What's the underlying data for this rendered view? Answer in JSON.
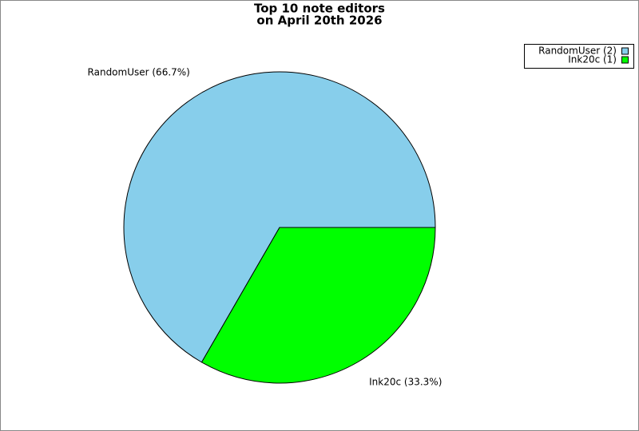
{
  "chart_data": {
    "type": "pie",
    "title": [
      "Top 10 note editors",
      "on April 20th 2026"
    ],
    "categories": [
      "RandomUser",
      "Ink20c"
    ],
    "values": [
      2,
      1
    ],
    "colors": [
      "#87ceeb",
      "#00ff00"
    ],
    "slice_labels": [
      "RandomUser (66.7%)",
      "Ink20c (33.3%)"
    ],
    "legend_labels": [
      "RandomUser (2)",
      "Ink20c (1)"
    ],
    "legend": "top-right"
  }
}
